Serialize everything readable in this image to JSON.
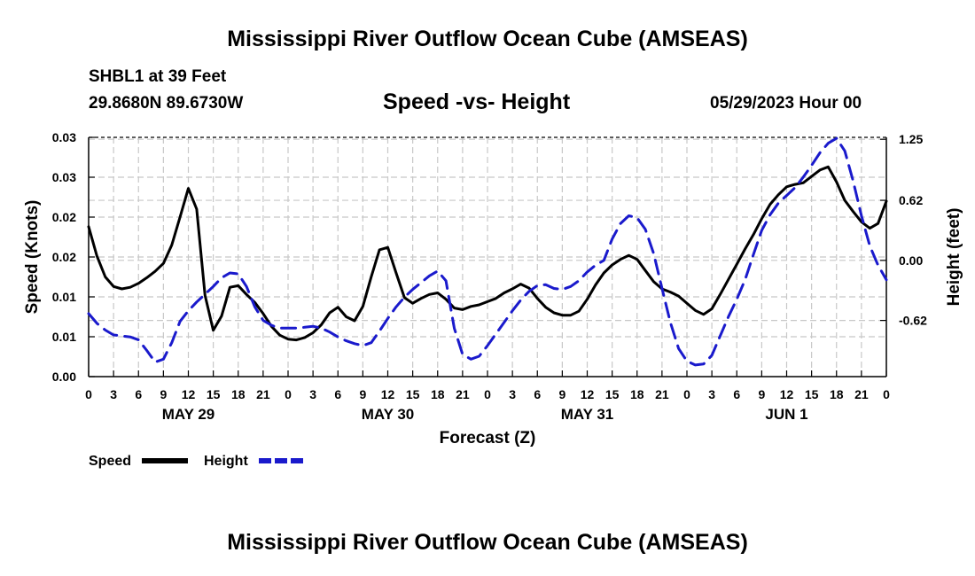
{
  "header": {
    "title": "Mississippi River Outflow Ocean Cube (AMSEAS)",
    "station": "SHBL1 at 39 Feet",
    "coords": "29.8680N  89.6730W",
    "subtitle": "Speed -vs- Height",
    "datetime": "05/29/2023 Hour 00"
  },
  "footer": {
    "title": "Mississippi River Outflow Ocean Cube (AMSEAS)"
  },
  "chart_data": {
    "type": "line",
    "title": "Speed -vs- Height",
    "xlabel": "Forecast (Z)",
    "ylabel": "Speed (Knots)",
    "y2label": "Height (feet)",
    "x_range_hours": [
      0,
      96
    ],
    "x_tick_step_hours": 3,
    "x_tick_labels": [
      "0",
      "3",
      "6",
      "9",
      "12",
      "15",
      "18",
      "21",
      "0",
      "3",
      "6",
      "9",
      "12",
      "15",
      "18",
      "21",
      "0",
      "3",
      "6",
      "9",
      "12",
      "15",
      "18",
      "21",
      "0",
      "3",
      "6",
      "9",
      "12",
      "15",
      "18",
      "21",
      "0"
    ],
    "date_labels": [
      {
        "label": "MAY 29",
        "hour": 12
      },
      {
        "label": "MAY 30",
        "hour": 36
      },
      {
        "label": "MAY 31",
        "hour": 60
      },
      {
        "label": "JUN 1",
        "hour": 84
      }
    ],
    "y_left": {
      "range": [
        0.0,
        0.03
      ],
      "ticks": [
        0.0,
        0.005,
        0.01,
        0.015,
        0.02,
        0.025,
        0.03
      ],
      "tick_labels": [
        "0.00",
        "0.01",
        "0.01",
        "0.02",
        "0.02",
        "0.03",
        "0.03"
      ]
    },
    "y_right": {
      "range": [
        -1.2,
        1.27
      ],
      "ticks": [
        -0.62,
        0.0,
        0.62,
        1.25
      ],
      "tick_labels": [
        "-0.62",
        "0.00",
        "0.62",
        "1.25"
      ]
    },
    "legend": [
      {
        "label": "Speed",
        "color": "#000000",
        "style": "solid"
      },
      {
        "label": "Height",
        "color": "#1a1acc",
        "style": "dashed"
      }
    ],
    "series": [
      {
        "name": "Speed",
        "axis": "left",
        "color": "#000000",
        "x": [
          0,
          1,
          2,
          3,
          4,
          5,
          6,
          7,
          8,
          9,
          10,
          11,
          12,
          13,
          14,
          15,
          16,
          17,
          18,
          19,
          20,
          21,
          22,
          23,
          24,
          25,
          26,
          27,
          28,
          29,
          30,
          31,
          32,
          33,
          34,
          35,
          36,
          37,
          38,
          39,
          40,
          41,
          42,
          43,
          44,
          45,
          46,
          47,
          48,
          49,
          50,
          51,
          52,
          53,
          54,
          55,
          56,
          57,
          58,
          59,
          60,
          61,
          62,
          63,
          64,
          65,
          66,
          67,
          68,
          69,
          70,
          71,
          72,
          73,
          74,
          75,
          76,
          77,
          78,
          79,
          80,
          81,
          82,
          83,
          84,
          85,
          86,
          87,
          88,
          89,
          90,
          91,
          92,
          93,
          94,
          95,
          96
        ],
        "values": [
          0.0188,
          0.0151,
          0.0125,
          0.0113,
          0.011,
          0.0112,
          0.0117,
          0.0124,
          0.0132,
          0.0142,
          0.0165,
          0.02,
          0.0236,
          0.021,
          0.0102,
          0.0058,
          0.0076,
          0.0112,
          0.0114,
          0.0103,
          0.0093,
          0.0079,
          0.0063,
          0.0052,
          0.0047,
          0.0046,
          0.0049,
          0.0055,
          0.0065,
          0.008,
          0.0087,
          0.0075,
          0.007,
          0.0088,
          0.0125,
          0.0159,
          0.0162,
          0.013,
          0.0099,
          0.0092,
          0.0098,
          0.0103,
          0.0105,
          0.0097,
          0.0086,
          0.0084,
          0.0088,
          0.009,
          0.0094,
          0.0098,
          0.0105,
          0.011,
          0.0116,
          0.0111,
          0.0098,
          0.0087,
          0.008,
          0.0077,
          0.0077,
          0.0082,
          0.0097,
          0.0115,
          0.013,
          0.014,
          0.0147,
          0.0152,
          0.0147,
          0.0133,
          0.0119,
          0.011,
          0.0106,
          0.0101,
          0.0092,
          0.0083,
          0.0078,
          0.0085,
          0.0103,
          0.0122,
          0.0141,
          0.016,
          0.0178,
          0.0198,
          0.0216,
          0.0228,
          0.0238,
          0.0241,
          0.0243,
          0.0251,
          0.0259,
          0.0263,
          0.0244,
          0.0221,
          0.0207,
          0.0194,
          0.0186,
          0.0192,
          0.022
        ]
      },
      {
        "name": "Height",
        "axis": "right",
        "color": "#1a1acc",
        "x": [
          0,
          1,
          2,
          3,
          4,
          5,
          6,
          7,
          8,
          9,
          10,
          11,
          12,
          13,
          14,
          15,
          16,
          17,
          18,
          19,
          20,
          21,
          22,
          23,
          24,
          25,
          26,
          27,
          28,
          29,
          30,
          31,
          32,
          33,
          34,
          35,
          36,
          37,
          38,
          39,
          40,
          41,
          42,
          43,
          44,
          45,
          46,
          47,
          48,
          49,
          50,
          51,
          52,
          53,
          54,
          55,
          56,
          57,
          58,
          59,
          60,
          61,
          62,
          63,
          64,
          65,
          66,
          67,
          68,
          69,
          70,
          71,
          72,
          73,
          74,
          75,
          76,
          77,
          78,
          79,
          80,
          81,
          82,
          83,
          84,
          85,
          86,
          87,
          88,
          89,
          90,
          91,
          92,
          93,
          94,
          95,
          96
        ],
        "values": [
          -0.55,
          -0.65,
          -0.72,
          -0.77,
          -0.78,
          -0.79,
          -0.82,
          -0.93,
          -1.05,
          -1.02,
          -0.85,
          -0.63,
          -0.52,
          -0.43,
          -0.35,
          -0.27,
          -0.18,
          -0.13,
          -0.14,
          -0.27,
          -0.48,
          -0.62,
          -0.67,
          -0.7,
          -0.7,
          -0.7,
          -0.69,
          -0.68,
          -0.7,
          -0.74,
          -0.79,
          -0.83,
          -0.86,
          -0.88,
          -0.85,
          -0.73,
          -0.6,
          -0.48,
          -0.38,
          -0.3,
          -0.23,
          -0.16,
          -0.11,
          -0.21,
          -0.7,
          -0.97,
          -1.02,
          -0.99,
          -0.88,
          -0.76,
          -0.64,
          -0.52,
          -0.41,
          -0.32,
          -0.26,
          -0.25,
          -0.29,
          -0.3,
          -0.27,
          -0.21,
          -0.12,
          -0.05,
          0.0,
          0.22,
          0.38,
          0.46,
          0.44,
          0.32,
          0.07,
          -0.29,
          -0.64,
          -0.91,
          -1.04,
          -1.08,
          -1.07,
          -0.98,
          -0.78,
          -0.58,
          -0.4,
          -0.2,
          0.06,
          0.31,
          0.47,
          0.59,
          0.67,
          0.75,
          0.86,
          0.98,
          1.11,
          1.21,
          1.26,
          1.13,
          0.82,
          0.46,
          0.15,
          -0.05,
          -0.2
        ]
      }
    ]
  }
}
